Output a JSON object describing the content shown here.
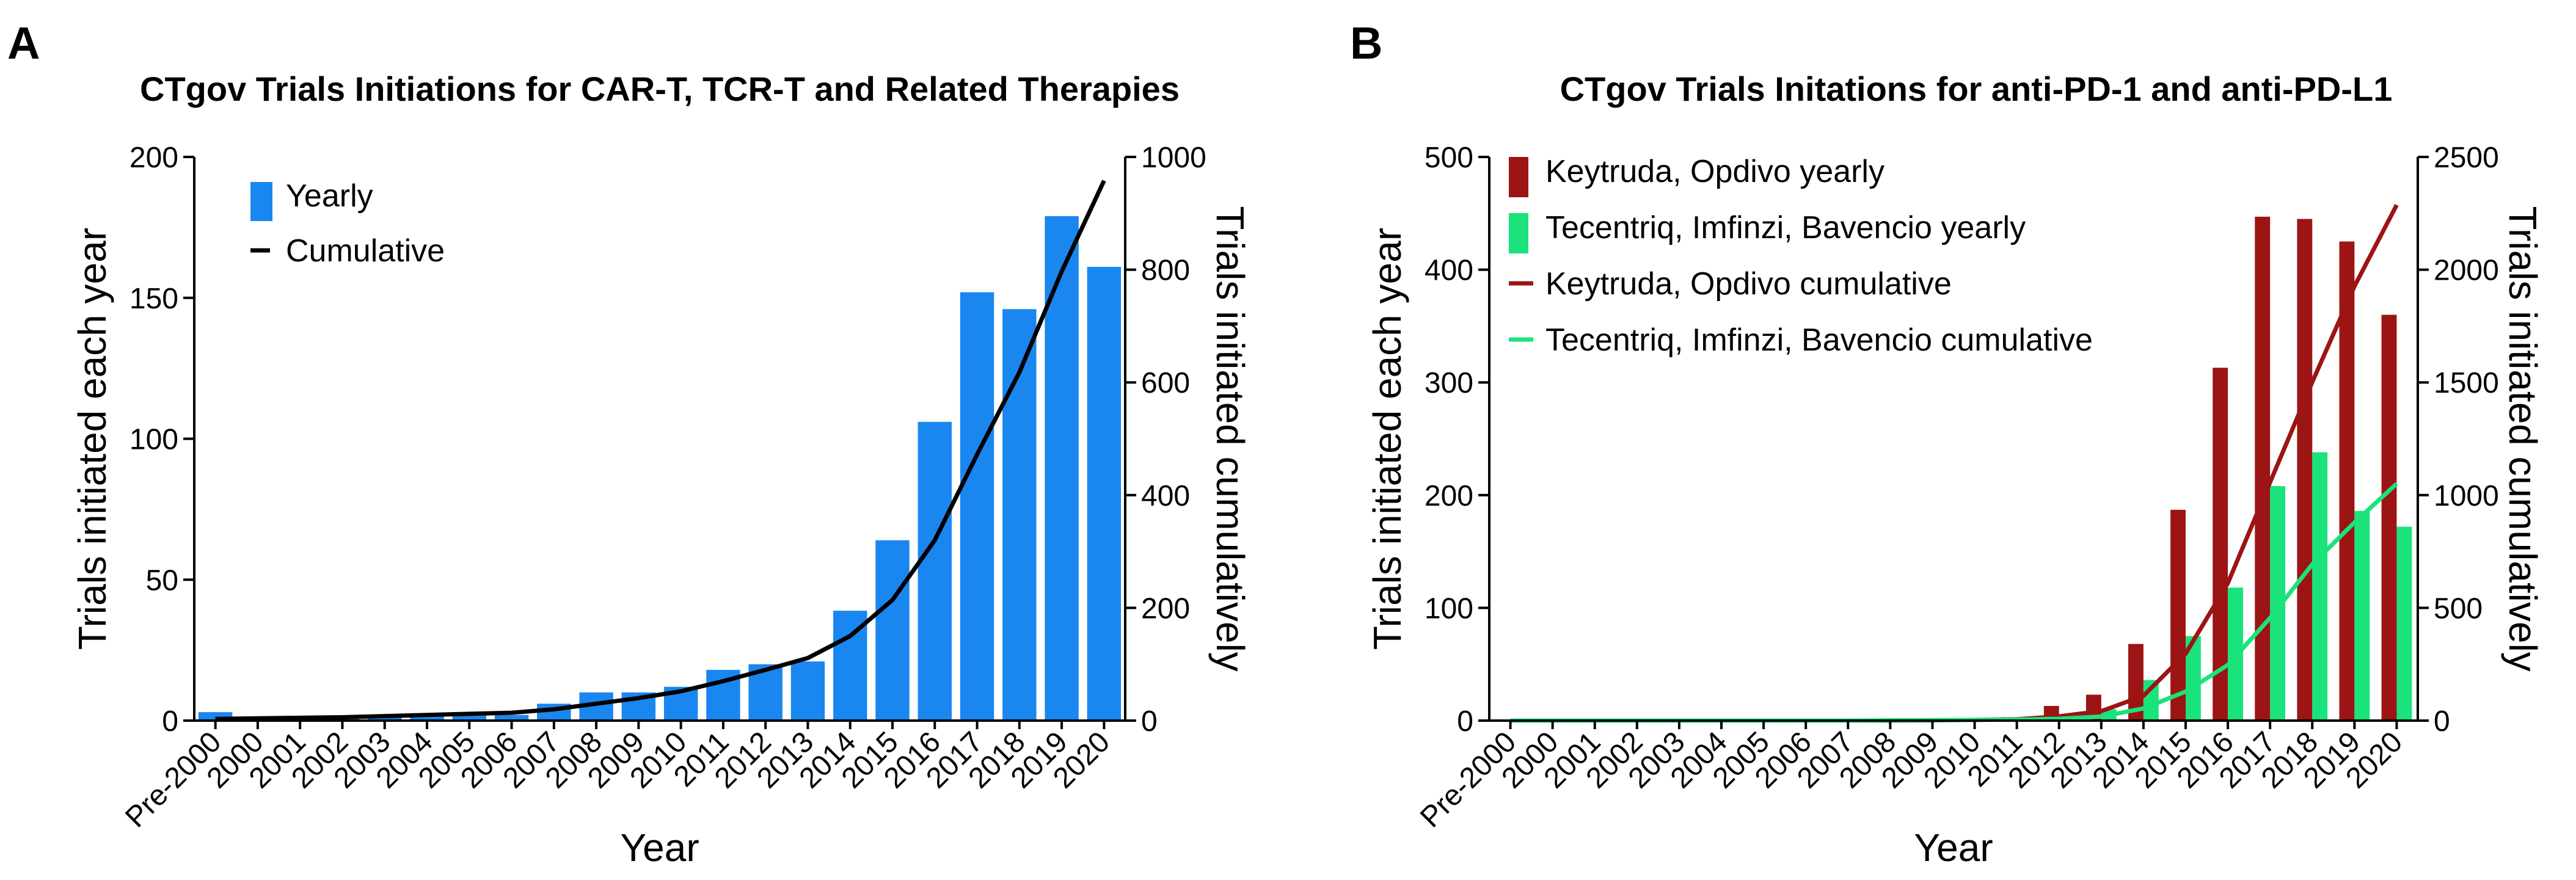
{
  "figure": {
    "panels": [
      "A",
      "B"
    ]
  },
  "chart_data": [
    {
      "type": "bar",
      "panel": "A",
      "title": "CTgov Trials Initiations for CAR-T, TCR-T and Related Therapies",
      "xlabel": "Year",
      "ylabel": "Trials initiated each year",
      "ylabel_right": "Trials initiated cumulatively",
      "categories": [
        "Pre-2000",
        "2000",
        "2001",
        "2002",
        "2003",
        "2004",
        "2005",
        "2006",
        "2007",
        "2008",
        "2009",
        "2010",
        "2011",
        "2012",
        "2013",
        "2014",
        "2015",
        "2016",
        "2017",
        "2018",
        "2019",
        "2020"
      ],
      "ylim": [
        0,
        200
      ],
      "yticks": [
        0,
        50,
        100,
        150,
        200
      ],
      "ylim_right": [
        0,
        1000
      ],
      "yticks_right": [
        0,
        200,
        400,
        600,
        800,
        1000
      ],
      "series": [
        {
          "name": "Yearly",
          "kind": "bar",
          "axis": "left",
          "color": "#1a86f0",
          "values": [
            3,
            1,
            1,
            1,
            2,
            2,
            2,
            2,
            6,
            10,
            10,
            12,
            18,
            20,
            21,
            39,
            64,
            106,
            152,
            146,
            179,
            161
          ]
        },
        {
          "name": "Cumulative",
          "kind": "line",
          "axis": "right",
          "color": "#000000",
          "values": [
            3,
            4,
            5,
            6,
            8,
            10,
            12,
            14,
            20,
            30,
            40,
            52,
            70,
            90,
            111,
            150,
            214,
            320,
            472,
            618,
            797,
            958
          ]
        }
      ],
      "legend": [
        "Yearly",
        "Cumulative"
      ],
      "legend_position": "top-left"
    },
    {
      "type": "bar",
      "panel": "B",
      "title": "CTgov Trials Initations for anti-PD-1 and anti-PD-L1",
      "xlabel": "Year",
      "ylabel": "Trials initiated each year",
      "ylabel_right": "Trials initiated cumulatively",
      "categories": [
        "Pre-2000",
        "2000",
        "2001",
        "2002",
        "2003",
        "2004",
        "2005",
        "2006",
        "2007",
        "2008",
        "2009",
        "2010",
        "2011",
        "2012",
        "2013",
        "2014",
        "2015",
        "2016",
        "2017",
        "2018",
        "2019",
        "2020"
      ],
      "ylim": [
        0,
        500
      ],
      "yticks": [
        0,
        100,
        200,
        300,
        400,
        500
      ],
      "ylim_right": [
        0,
        2500
      ],
      "yticks_right": [
        0,
        500,
        1000,
        1500,
        2000,
        2500
      ],
      "series": [
        {
          "name": "Keytruda, Opdivo yearly",
          "kind": "bar",
          "axis": "left",
          "color": "#9c1414",
          "values": [
            0,
            0,
            0,
            0,
            0,
            0,
            0,
            0,
            0,
            0,
            1,
            2,
            3,
            13,
            23,
            68,
            187,
            313,
            447,
            445,
            425,
            360
          ]
        },
        {
          "name": "Tecentriq, Imfinzi, Bavencio yearly",
          "kind": "bar",
          "axis": "left",
          "color": "#19e37a",
          "values": [
            0,
            0,
            0,
            0,
            0,
            0,
            0,
            0,
            0,
            1,
            1,
            1,
            2,
            3,
            10,
            36,
            75,
            118,
            208,
            238,
            186,
            172
          ]
        },
        {
          "name": "Keytruda, Opdivo cumulative",
          "kind": "line",
          "axis": "right",
          "color": "#9c1414",
          "values": [
            0,
            0,
            0,
            0,
            0,
            0,
            0,
            0,
            0,
            0,
            1,
            3,
            6,
            19,
            42,
            110,
            297,
            610,
            1057,
            1502,
            1927,
            2287
          ]
        },
        {
          "name": "Tecentriq, Imfinzi, Bavencio cumulative",
          "kind": "line",
          "axis": "right",
          "color": "#19e37a",
          "values": [
            0,
            0,
            0,
            0,
            0,
            0,
            0,
            0,
            0,
            1,
            2,
            3,
            5,
            8,
            18,
            54,
            129,
            247,
            455,
            693,
            879,
            1051
          ]
        }
      ],
      "legend": [
        "Keytruda, Opdivo yearly",
        "Tecentriq, Imfinzi, Bavencio yearly",
        "Keytruda, Opdivo cumulative",
        "Tecentriq, Imfinzi, Bavencio cumulative"
      ],
      "legend_position": "top-left"
    }
  ]
}
